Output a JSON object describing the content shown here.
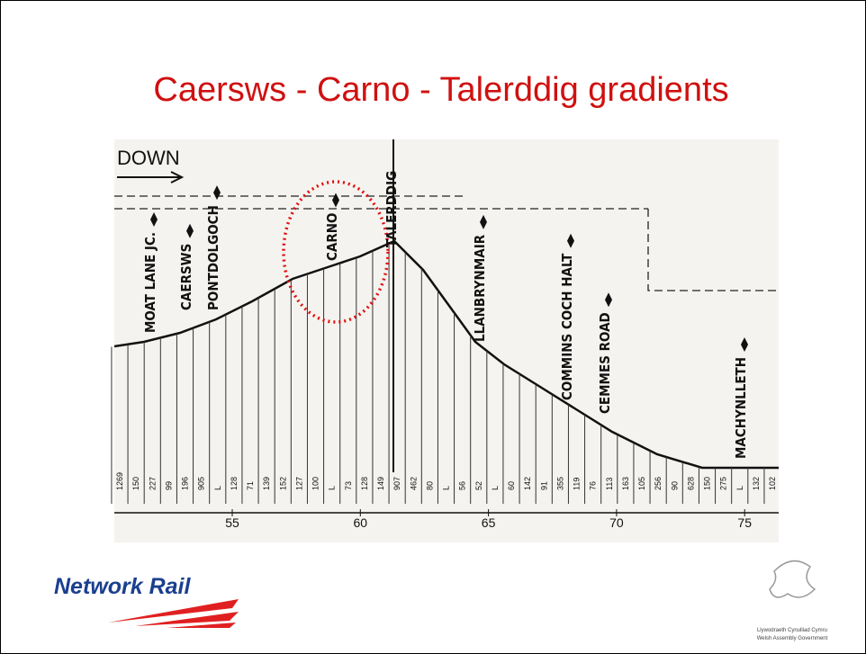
{
  "header": {
    "title": "Caersws - Carno - Talerddig gradients"
  },
  "diagram": {
    "direction": "DOWN",
    "stations": [
      "MOAT LANE JC.",
      "CAERSWS",
      "PONTDOLGOCH",
      "CARNO",
      "TALERDDIG",
      "LLANBRYNMAIR",
      "COMMINS COCH HALT",
      "CEMMES ROAD",
      "MACHYNLLETH"
    ],
    "gradients": [
      "1269",
      "150",
      "227",
      "99",
      "196",
      "905",
      "L",
      "128",
      "71",
      "139",
      "152",
      "127",
      "100",
      "L",
      "73",
      "128",
      "149",
      "907",
      "462",
      "80",
      "L",
      "56",
      "52",
      "L",
      "60",
      "142",
      "91",
      "355",
      "119",
      "76",
      "113",
      "163",
      "105",
      "256",
      "90",
      "628",
      "150",
      "275",
      "L",
      "132",
      "102"
    ],
    "mileposts": [
      "55",
      "60",
      "65",
      "70",
      "75"
    ]
  },
  "logos": {
    "network_rail": "Network Rail",
    "welsh_line1": "Llywodraeth Cynulliad Cymru",
    "welsh_line2": "Welsh Assembly Government"
  }
}
